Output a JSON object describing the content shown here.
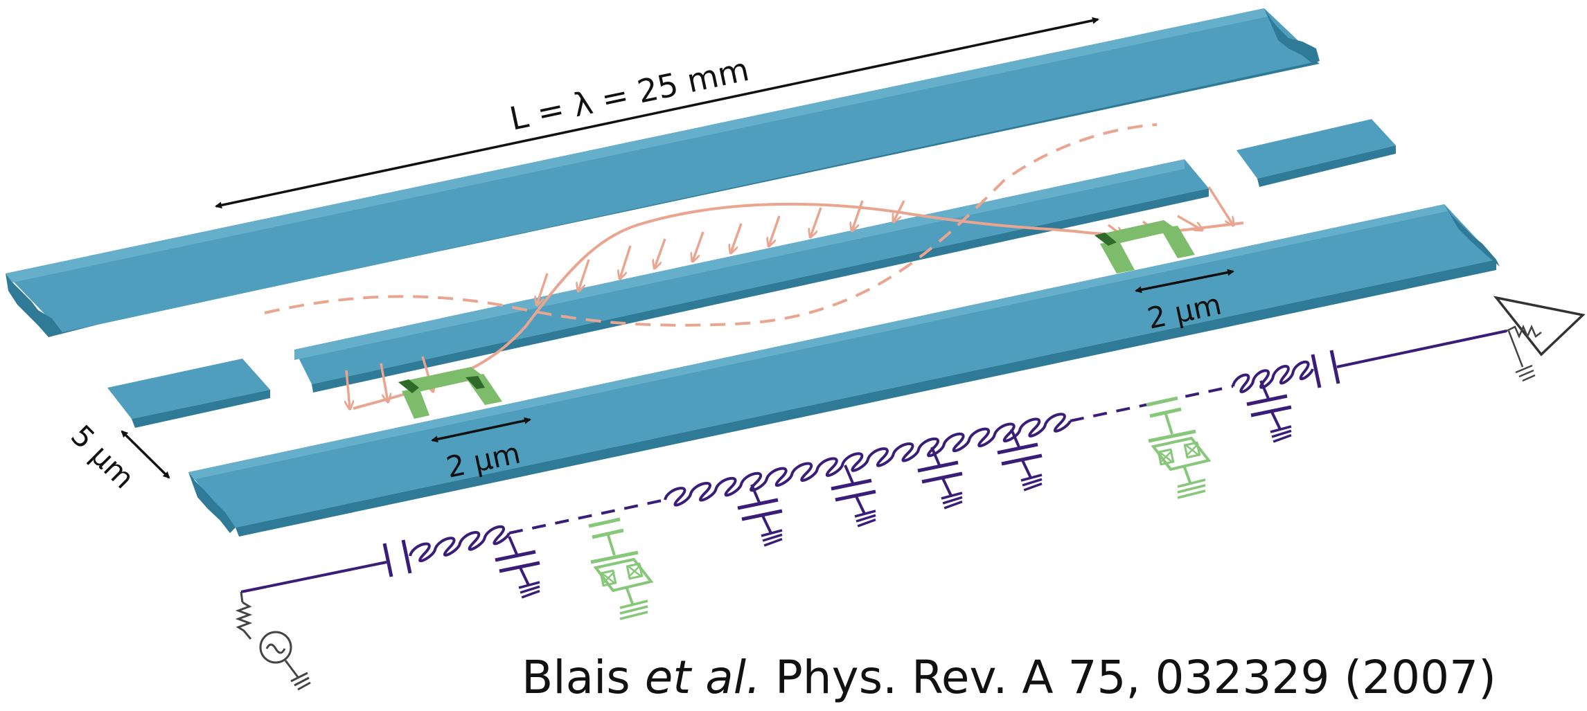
{
  "labels": {
    "length": "L = λ = 25 mm",
    "gap_width": "5 μm",
    "junction_left": "2 μm",
    "junction_right": "2 μm"
  },
  "citation": {
    "authors": "Blais",
    "etal": "et al.",
    "reference": "Phys. Rev. A 75, 032329 (2007)"
  },
  "colors": {
    "conductor": "#4f9ebd",
    "conductor_edge": "#2f7a97",
    "qubit": "#7dbc6a",
    "qubit_dark": "#2e6b2b",
    "field": "#e9a58f",
    "circuit": "#3a1d78",
    "circuit_qubit": "#86c77a",
    "source": "#444444"
  },
  "icons": [
    "ac-source-icon",
    "resistor-icon",
    "ground-icon",
    "amplifier-icon",
    "capacitor-icon",
    "inductor-icon",
    "josephson-junction-icon"
  ]
}
